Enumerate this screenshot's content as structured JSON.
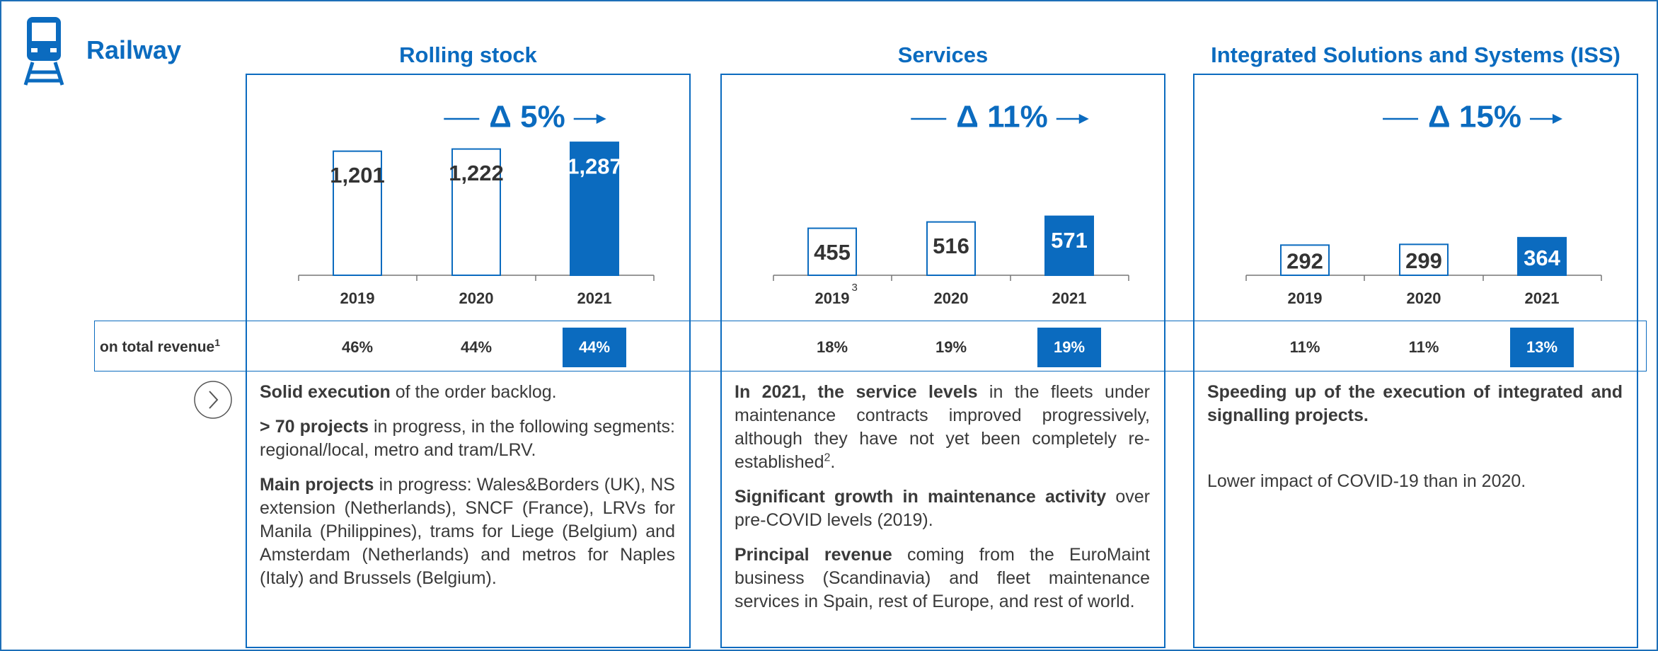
{
  "title": "Railway",
  "row_label": {
    "text": "on total revenue",
    "note": "1"
  },
  "chart_data": [
    {
      "type": "bar",
      "title": "Rolling stock",
      "growth": "Δ 5%",
      "categories": [
        "2019",
        "2020",
        "2021"
      ],
      "category_notes": [
        null,
        null,
        null
      ],
      "values": [
        1201,
        1222,
        1287
      ],
      "value_labels": [
        "1,201",
        "1,222",
        "1,287"
      ],
      "color": "#0b6bbf",
      "filled": [
        false,
        false,
        true
      ],
      "shares": [
        46,
        44,
        44
      ],
      "share_labels": [
        "46%",
        "44%",
        "44%"
      ],
      "paragraphs": [
        [
          {
            "style": "bold",
            "text": "Solid execution"
          },
          {
            "style": "normal",
            "text": " of the order backlog."
          }
        ],
        [
          {
            "style": "bold",
            "text": "> 70 projects"
          },
          {
            "style": "normal",
            "text": " in progress, in the following segments: regional/local, metro and tram/LRV."
          }
        ],
        [
          {
            "style": "bold",
            "text": "Main projects"
          },
          {
            "style": "normal",
            "text": " in progress: Wales&Borders (UK), NS extension (Netherlands), SNCF (France), LRVs for Manila (Philippines), trams for Liege (Belgium) and Amsterdam (Netherlands) and metros for Naples (Italy) and Brussels (Belgium)."
          }
        ]
      ]
    },
    {
      "type": "bar",
      "title": "Services",
      "growth": "Δ 11%",
      "categories": [
        "2019",
        "2020",
        "2021"
      ],
      "category_notes": [
        "3",
        null,
        null
      ],
      "values": [
        455,
        516,
        571
      ],
      "value_labels": [
        "455",
        "516",
        "571"
      ],
      "color": "#0b6bbf",
      "filled": [
        false,
        false,
        true
      ],
      "shares": [
        18,
        19,
        19
      ],
      "share_labels": [
        "18%",
        "19%",
        "19%"
      ],
      "paragraphs": [
        [
          {
            "style": "bold",
            "text": "In 2021, the service levels"
          },
          {
            "style": "normal",
            "text": " in the fleets under maintenance contracts improved progressively, although they have not yet been completely re-established"
          },
          {
            "style": "sup",
            "text": "2"
          },
          {
            "style": "normal",
            "text": "."
          }
        ],
        [
          {
            "style": "bold",
            "text": "Significant growth in maintenance activity"
          },
          {
            "style": "normal",
            "text": " over pre-COVID levels (2019)."
          }
        ],
        [
          {
            "style": "bold",
            "text": "Principal revenue"
          },
          {
            "style": "normal",
            "text": " coming from the EuroMaint business (Scandinavia) and fleet maintenance services in Spain, rest of Europe, and rest of world."
          }
        ]
      ]
    },
    {
      "type": "bar",
      "title": "Integrated Solutions and Systems (ISS)",
      "growth": "Δ 15%",
      "categories": [
        "2019",
        "2020",
        "2021"
      ],
      "category_notes": [
        null,
        null,
        null
      ],
      "values": [
        292,
        299,
        364
      ],
      "value_labels": [
        "292",
        "299",
        "364"
      ],
      "color": "#0b6bbf",
      "filled": [
        false,
        false,
        true
      ],
      "shares": [
        11,
        11,
        13
      ],
      "share_labels": [
        "11%",
        "11%",
        "13%"
      ],
      "paragraphs": [
        [
          {
            "style": "bold",
            "text": "Speeding up of the execution of integrated and signalling projects."
          }
        ],
        [
          {
            "style": "normal",
            "text": "Lower impact of COVID-19 than in 2020."
          }
        ]
      ]
    }
  ]
}
